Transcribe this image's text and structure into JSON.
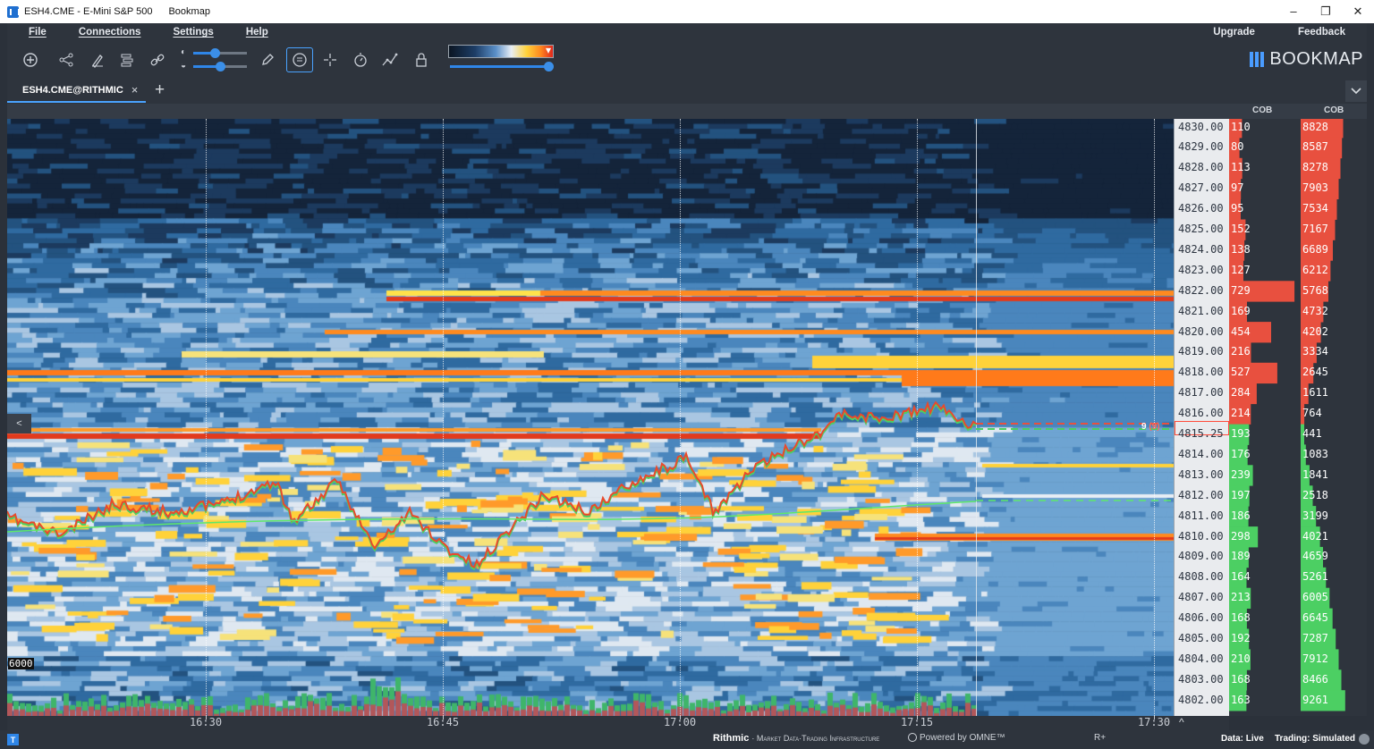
{
  "window": {
    "title_left": "ESH4.CME - E-Mini S&P 500",
    "title_app": "Bookmap",
    "minimize": "–",
    "restore": "❐",
    "close": "✕"
  },
  "menu": {
    "items": [
      "File",
      "Connections",
      "Settings",
      "Help"
    ],
    "upgrade": "Upgrade",
    "feedback": "Feedback"
  },
  "brand": {
    "name": "BOOKMAP",
    "accent": "#4a9cff"
  },
  "toolbar": {
    "icons": [
      "new-chart-icon",
      "share-icon",
      "drawing-icon",
      "layers-icon",
      "link-icon",
      "pencil-icon",
      "chat-icon",
      "crosshair-icon",
      "timer-icon",
      "indicator-icon",
      "lock-icon"
    ],
    "brightness_level": 0.4,
    "contrast_level": 0.5,
    "heatmap_range_level": 1.0
  },
  "tabs": {
    "active": "ESH4.CME@RITHMIC",
    "close": "×",
    "add": "+",
    "menu": "⌄"
  },
  "columns": {
    "cob_left": "COB",
    "cob_right": "COB"
  },
  "chart_data": {
    "type": "heatmap",
    "instrument": "ESH4.CME",
    "prices": [
      "4830.00",
      "4829.00",
      "4828.00",
      "4827.00",
      "4826.00",
      "4825.00",
      "4824.00",
      "4823.00",
      "4822.00",
      "4821.00",
      "4820.00",
      "4819.00",
      "4818.00",
      "4817.00",
      "4816.00",
      "4815.25",
      "4814.00",
      "4813.00",
      "4812.00",
      "4811.00",
      "4810.00",
      "4809.00",
      "4808.00",
      "4807.00",
      "4806.00",
      "4805.00",
      "4804.00",
      "4803.00",
      "4802.00"
    ],
    "current_price": "4815.25",
    "cob_left": [
      "110",
      "80",
      "113",
      "97",
      "95",
      "152",
      "138",
      "127",
      "729",
      "169",
      "454",
      "216",
      "527",
      "284",
      "214",
      "193",
      "176",
      "239",
      "197",
      "186",
      "298",
      "189",
      "164",
      "213",
      "168",
      "192",
      "210",
      "168",
      "163"
    ],
    "cob_right": [
      "8828",
      "8587",
      "8278",
      "7903",
      "7534",
      "7167",
      "6689",
      "6212",
      "5768",
      "4732",
      "4202",
      "3334",
      "2645",
      "1611",
      "764",
      "441",
      "1083",
      "1841",
      "2518",
      "3199",
      "4021",
      "4659",
      "5261",
      "6005",
      "6645",
      "7287",
      "7912",
      "8466",
      "9261"
    ],
    "time_ticks": [
      "16:30",
      "16:45",
      "17:00",
      "17:15",
      "17:30"
    ],
    "volume_scale_label": "6000",
    "last_trade_size": "9",
    "last_trade_paren": "(9)",
    "colors": {
      "ask": "#e8503f",
      "bid": "#4ccf63",
      "price_line": "#e84a2c",
      "vwap": "#5ee86a"
    }
  },
  "ladder": {
    "expand": "^",
    "collapse": "<"
  },
  "status": {
    "icon_letter": "T",
    "rithmic": "Rithmic",
    "rithmic_rest": "· Market Data·Trading Infrastructure",
    "omne": "Powered by OMNE™",
    "r_plus": "R+",
    "data": "Data: Live",
    "trading": "Trading: Simulated"
  }
}
